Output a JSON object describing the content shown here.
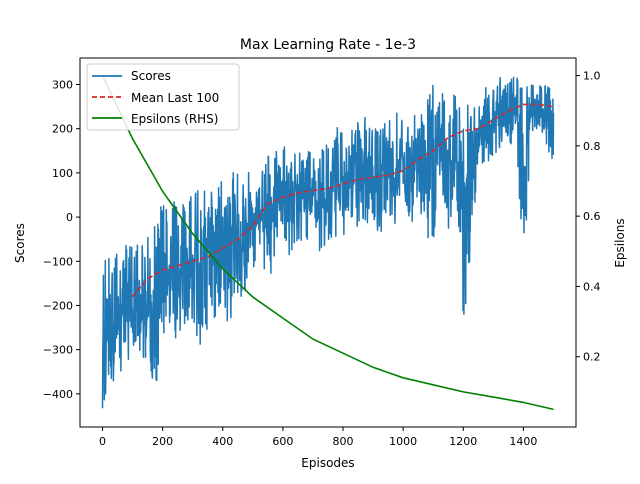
{
  "chart_data": {
    "type": "line",
    "title": "Max Learning Rate - 1e-3",
    "xlabel": "Episodes",
    "ylabel": "Scores",
    "ylabel_right": "Epsilons",
    "xlim": [
      -75,
      1575
    ],
    "ylim": [
      -475,
      360
    ],
    "ylim_right": [
      0.0,
      1.05
    ],
    "x_ticks": [
      0,
      200,
      400,
      600,
      800,
      1000,
      1200,
      1400
    ],
    "y_ticks": [
      -400,
      -300,
      -200,
      -100,
      0,
      100,
      200,
      300
    ],
    "y_right_ticks": [
      0.2,
      0.4,
      0.6,
      0.8,
      1.0
    ],
    "grid": false,
    "legend_position": "top-left",
    "legend": [
      "Scores",
      "Mean Last 100",
      "Epsilons (RHS)"
    ],
    "colors": {
      "scores": "#1f77b4",
      "mean": "#d62728",
      "epsilon": "#008000"
    },
    "series": [
      {
        "name": "Scores",
        "axis": "left",
        "style": "solid",
        "x": [
          0,
          25,
          50,
          75,
          100,
          125,
          150,
          175,
          200,
          225,
          250,
          275,
          300,
          325,
          350,
          375,
          400,
          425,
          450,
          475,
          500,
          525,
          550,
          575,
          600,
          625,
          650,
          675,
          700,
          725,
          750,
          775,
          800,
          825,
          850,
          875,
          900,
          925,
          950,
          975,
          1000,
          1025,
          1050,
          1075,
          1100,
          1125,
          1150,
          1175,
          1200,
          1225,
          1250,
          1275,
          1300,
          1325,
          1350,
          1375,
          1400,
          1425,
          1450,
          1475,
          1500
        ],
        "upper": [
          -90,
          -80,
          -70,
          -60,
          -60,
          -50,
          -40,
          -10,
          50,
          40,
          30,
          40,
          60,
          60,
          60,
          70,
          90,
          100,
          110,
          150,
          110,
          120,
          140,
          160,
          170,
          130,
          150,
          150,
          160,
          150,
          170,
          210,
          190,
          210,
          220,
          240,
          200,
          210,
          220,
          240,
          220,
          240,
          250,
          270,
          300,
          290,
          260,
          300,
          250,
          280,
          260,
          300,
          290,
          320,
          310,
          325,
          310,
          305,
          300,
          310,
          300
        ],
        "lower": [
          -445,
          -380,
          -360,
          -350,
          -330,
          -330,
          -320,
          -400,
          -300,
          -250,
          -300,
          -270,
          -280,
          -300,
          -250,
          -250,
          -200,
          -280,
          -200,
          -170,
          -150,
          -100,
          -150,
          -100,
          -50,
          -110,
          -60,
          -50,
          -70,
          -80,
          -50,
          -50,
          -70,
          -40,
          -20,
          -10,
          -30,
          -80,
          0,
          -20,
          40,
          -40,
          50,
          -70,
          -60,
          80,
          -50,
          90,
          -265,
          -80,
          100,
          120,
          140,
          150,
          160,
          170,
          -138,
          180,
          190,
          150,
          120
        ]
      },
      {
        "name": "Mean Last 100",
        "axis": "left",
        "style": "dashed",
        "x": [
          99,
          150,
          200,
          250,
          300,
          350,
          400,
          450,
          500,
          550,
          600,
          650,
          700,
          750,
          800,
          850,
          900,
          950,
          1000,
          1050,
          1100,
          1150,
          1200,
          1250,
          1300,
          1350,
          1400,
          1450,
          1500
        ],
        "values": [
          -180,
          -140,
          -120,
          -110,
          -100,
          -90,
          -70,
          -50,
          -20,
          30,
          45,
          55,
          60,
          65,
          75,
          85,
          90,
          95,
          105,
          130,
          150,
          180,
          195,
          200,
          220,
          240,
          255,
          255,
          250
        ]
      },
      {
        "name": "Epsilons (RHS)",
        "axis": "right",
        "style": "solid",
        "x": [
          0,
          100,
          200,
          300,
          400,
          500,
          600,
          700,
          800,
          900,
          1000,
          1100,
          1200,
          1300,
          1400,
          1500
        ],
        "values": [
          1.0,
          0.82,
          0.67,
          0.55,
          0.45,
          0.37,
          0.31,
          0.25,
          0.21,
          0.17,
          0.14,
          0.12,
          0.1,
          0.085,
          0.07,
          0.05
        ]
      }
    ]
  }
}
